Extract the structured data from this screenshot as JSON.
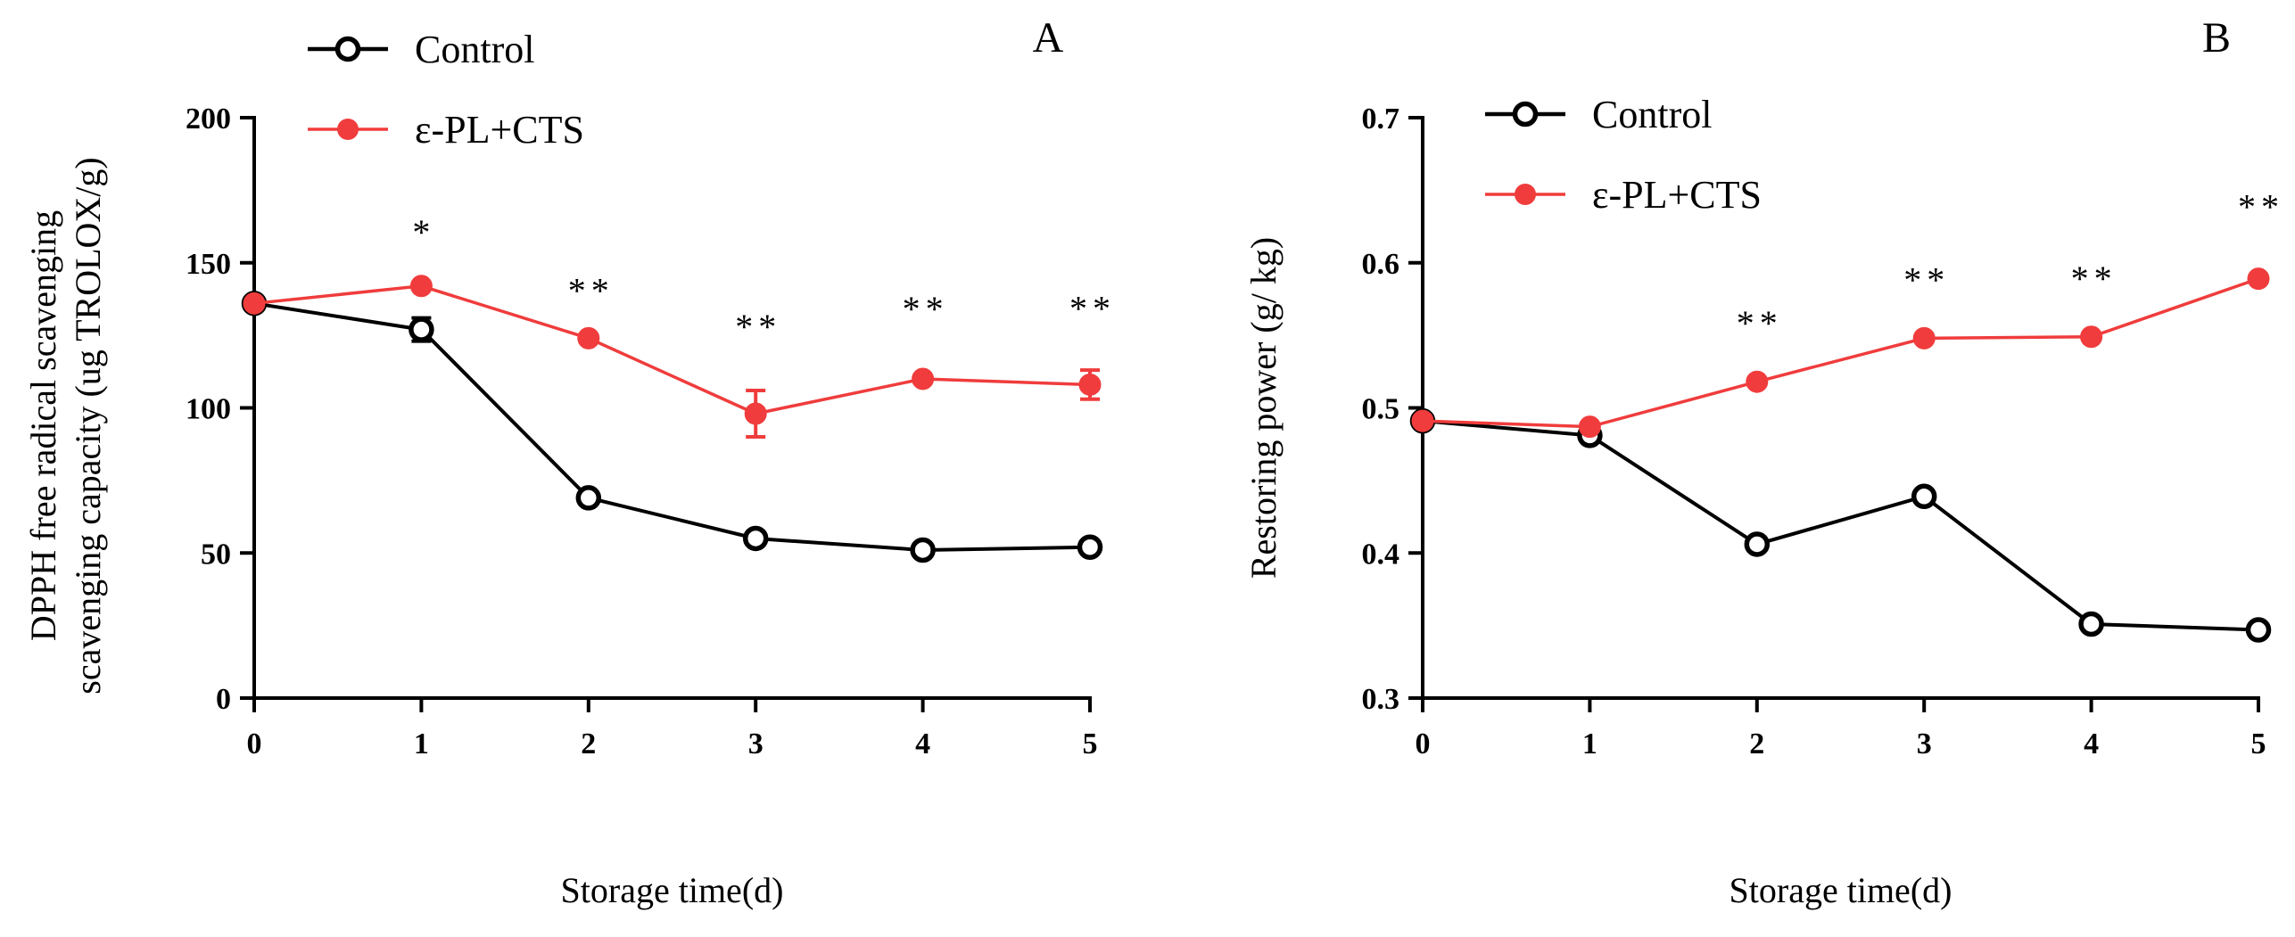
{
  "figure": {
    "palette": {
      "control": "#000000",
      "treatment": "#f03c3c"
    }
  },
  "chart_data": [
    {
      "type": "line",
      "panel_label": "A",
      "title": "",
      "xlabel": "Storage time(d)",
      "ylabel_line1": "DPPH free radical scavenging",
      "ylabel_line2": "scavenging capacity  (ug TROLOX/g)",
      "x": [
        0,
        1,
        2,
        3,
        4,
        5
      ],
      "xlim": [
        0,
        5
      ],
      "ylim": [
        0,
        200
      ],
      "xticks": [
        "0",
        "1",
        "2",
        "3",
        "4",
        "5"
      ],
      "yticks": [
        "0",
        "50",
        "100",
        "150",
        "200"
      ],
      "legend_position": "top-left",
      "series": [
        {
          "name": "Control",
          "marker": "open-circle",
          "values": [
            136,
            127,
            69,
            55,
            51,
            52
          ],
          "errors": [
            2,
            4,
            2,
            2,
            2,
            2
          ]
        },
        {
          "name": "ε-PL+CTS",
          "marker": "filled-circle",
          "values": [
            136,
            142,
            124,
            98,
            110,
            108
          ],
          "errors": [
            2,
            2,
            2,
            8,
            2,
            5
          ]
        }
      ],
      "annotations": [
        "",
        "*",
        "**",
        "**",
        "**",
        "**"
      ]
    },
    {
      "type": "line",
      "panel_label": "B",
      "title": "",
      "xlabel": "Storage time(d)",
      "ylabel": "Restoring power (g/ kg)",
      "x": [
        0,
        1,
        2,
        3,
        4,
        5
      ],
      "xlim": [
        0,
        5
      ],
      "ylim": [
        0.3,
        0.7
      ],
      "xticks": [
        "0",
        "1",
        "2",
        "3",
        "4",
        "5"
      ],
      "yticks": [
        "0.3",
        "0.4",
        "0.5",
        "0.6",
        "0.7"
      ],
      "legend_position": "top-left",
      "series": [
        {
          "name": "Control",
          "marker": "open-circle",
          "values": [
            0.491,
            0.481,
            0.406,
            0.439,
            0.351,
            0.347
          ],
          "errors": [
            0,
            0,
            0,
            0,
            0,
            0
          ]
        },
        {
          "name": "ε-PL+CTS",
          "marker": "filled-circle",
          "values": [
            0.491,
            0.487,
            0.518,
            0.548,
            0.549,
            0.589
          ],
          "errors": [
            0,
            0,
            0,
            0,
            0,
            0
          ]
        }
      ],
      "annotations": [
        "",
        "",
        "**",
        "**",
        "**",
        "**"
      ]
    }
  ]
}
